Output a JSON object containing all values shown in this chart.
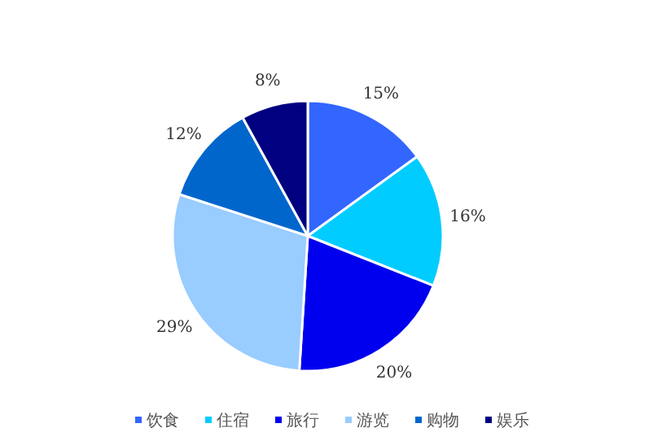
{
  "chart_data": {
    "type": "pie",
    "categories": [
      "饮食",
      "住宿",
      "旅行",
      "游览",
      "购物",
      "娱乐"
    ],
    "values": [
      15,
      16,
      20,
      29,
      12,
      8
    ],
    "colors": [
      "#3366ff",
      "#00ccff",
      "#0000ee",
      "#99ccff",
      "#0066cc",
      "#000080"
    ],
    "value_labels": [
      "15%",
      "16%",
      "20%",
      "29%",
      "12%",
      "8%"
    ],
    "legend": "bottom"
  }
}
